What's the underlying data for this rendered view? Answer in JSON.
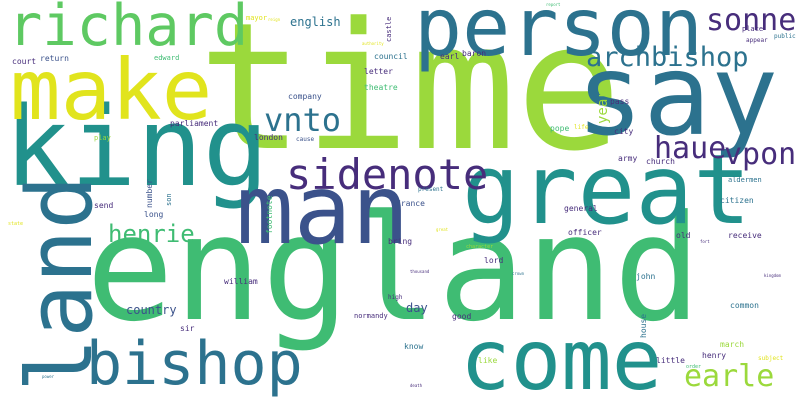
{
  "palette": {
    "dark_purple": "#472d7b",
    "indigo": "#3b528b",
    "blue": "#2c728e",
    "teal": "#21918c",
    "green_teal": "#28ae80",
    "green": "#3fbc73",
    "lime_green": "#5ec962",
    "yellow_green": "#9bd93c",
    "yellow": "#e1e41d",
    "background": "#ffffff"
  },
  "words": [
    {
      "text": "england",
      "color": "#3fbc73"
    },
    {
      "text": "time",
      "color": "#9bd93c"
    },
    {
      "text": "person",
      "color": "#2c728e"
    },
    {
      "text": "say",
      "color": "#2c728e"
    },
    {
      "text": "king",
      "color": "#21918c"
    },
    {
      "text": "make",
      "color": "#e1e41d"
    },
    {
      "text": "richard",
      "color": "#5ec962"
    },
    {
      "text": "man",
      "color": "#3b528b"
    },
    {
      "text": "great",
      "color": "#21918c"
    },
    {
      "text": "land",
      "color": "#2c728e"
    },
    {
      "text": "come",
      "color": "#21918c"
    },
    {
      "text": "bishop",
      "color": "#2c728e"
    },
    {
      "text": "sidenote",
      "color": "#472d7b"
    },
    {
      "text": "archbishop",
      "color": "#2c728e"
    },
    {
      "text": "sonne",
      "color": "#472d7b"
    },
    {
      "text": "vnto",
      "color": "#2c728e"
    },
    {
      "text": "haue",
      "color": "#472d7b"
    },
    {
      "text": "vpon",
      "color": "#472d7b"
    },
    {
      "text": "henrie",
      "color": "#3fbc73"
    },
    {
      "text": "earle",
      "color": "#9bd93c"
    },
    {
      "text": "english",
      "color": "#2c728e"
    },
    {
      "text": "year",
      "color": "#9bd93c"
    },
    {
      "text": "country",
      "color": "#3b528b"
    },
    {
      "text": "day",
      "color": "#3b528b"
    },
    {
      "text": "council",
      "color": "#2c728e"
    },
    {
      "text": "letter",
      "color": "#472d7b"
    },
    {
      "text": "theatre",
      "color": "#3fbc73"
    },
    {
      "text": "earl",
      "color": "#472d7b"
    },
    {
      "text": "baron",
      "color": "#472d7b"
    },
    {
      "text": "castle",
      "color": "#472d7b"
    },
    {
      "text": "mayor",
      "color": "#e1e41d"
    },
    {
      "text": "court",
      "color": "#472d7b"
    },
    {
      "text": "return",
      "color": "#3b528b"
    },
    {
      "text": "edward",
      "color": "#3fbc73"
    },
    {
      "text": "company",
      "color": "#3b528b"
    },
    {
      "text": "parliament",
      "color": "#472d7b"
    },
    {
      "text": "london",
      "color": "#472d7b"
    },
    {
      "text": "cause",
      "color": "#3b528b"
    },
    {
      "text": "play",
      "color": "#9bd93c"
    },
    {
      "text": "son",
      "color": "#2c728e"
    },
    {
      "text": "number",
      "color": "#3b528b"
    },
    {
      "text": "send",
      "color": "#472d7b"
    },
    {
      "text": "long",
      "color": "#3b528b"
    },
    {
      "text": "footnote",
      "color": "#3fbc73"
    },
    {
      "text": "france",
      "color": "#3b528b"
    },
    {
      "text": "bring",
      "color": "#472d7b"
    },
    {
      "text": "william",
      "color": "#472d7b"
    },
    {
      "text": "high",
      "color": "#472d7b"
    },
    {
      "text": "normandy",
      "color": "#472d7b"
    },
    {
      "text": "good",
      "color": "#472d7b"
    },
    {
      "text": "sir",
      "color": "#472d7b"
    },
    {
      "text": "know",
      "color": "#2c728e"
    },
    {
      "text": "general",
      "color": "#472d7b"
    },
    {
      "text": "officer",
      "color": "#472d7b"
    },
    {
      "text": "lord",
      "color": "#472d7b"
    },
    {
      "text": "old",
      "color": "#472d7b"
    },
    {
      "text": "receive",
      "color": "#472d7b"
    },
    {
      "text": "citizen",
      "color": "#2c728e"
    },
    {
      "text": "john",
      "color": "#2c728e"
    },
    {
      "text": "house",
      "color": "#2c728e"
    },
    {
      "text": "like",
      "color": "#9bd93c"
    },
    {
      "text": "little",
      "color": "#472d7b"
    },
    {
      "text": "henry",
      "color": "#472d7b"
    },
    {
      "text": "common",
      "color": "#2c728e"
    },
    {
      "text": "march",
      "color": "#9bd93c"
    },
    {
      "text": "subject",
      "color": "#e1e41d"
    },
    {
      "text": "army",
      "color": "#472d7b"
    },
    {
      "text": "church",
      "color": "#472d7b"
    },
    {
      "text": "aldermen",
      "color": "#2c728e"
    },
    {
      "text": "city",
      "color": "#472d7b"
    },
    {
      "text": "pope",
      "color": "#3fbc73"
    },
    {
      "text": "life",
      "color": "#e1e41d"
    },
    {
      "text": "pass",
      "color": "#472d7b"
    },
    {
      "text": "place",
      "color": "#472d7b"
    },
    {
      "text": "public",
      "color": "#2c728e"
    },
    {
      "text": "appear",
      "color": "#472d7b"
    },
    {
      "text": "present",
      "color": "#2c728e"
    },
    {
      "text": "character",
      "color": "#9bd93c"
    },
    {
      "text": "state",
      "color": "#e1e41d"
    },
    {
      "text": "order",
      "color": "#3fbc73"
    },
    {
      "text": "power",
      "color": "#2c728e"
    },
    {
      "text": "report",
      "color": "#3fbc73"
    },
    {
      "text": "death",
      "color": "#472d7b"
    },
    {
      "text": "thousand",
      "color": "#472d7b"
    },
    {
      "text": "crown",
      "color": "#2c728e"
    },
    {
      "text": "kingdom",
      "color": "#472d7b"
    },
    {
      "text": "great",
      "color": "#e1e41d"
    },
    {
      "text": "fort",
      "color": "#472d7b"
    },
    {
      "text": "authority",
      "color": "#e1e41d"
    },
    {
      "text": "reign",
      "color": "#e1e41d"
    }
  ]
}
